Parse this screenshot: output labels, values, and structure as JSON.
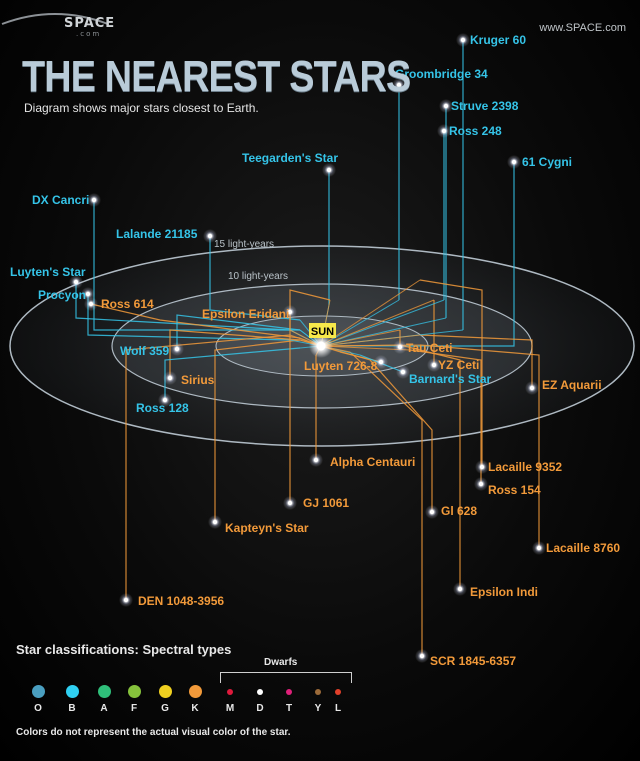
{
  "header": {
    "logo_text": "SPACE",
    "logo_sub": ".com",
    "site": "www.SPACE.com",
    "title": "THE NEAREST STARS",
    "subtitle": "Diagram shows major stars closest to Earth."
  },
  "rings": {
    "outer_label": "15 light-years",
    "inner_label": "10 light-years"
  },
  "sun": {
    "label": "SUN",
    "color": "#f7e84a"
  },
  "colors": {
    "blue": "#35c4e8",
    "orange": "#f29a3a",
    "ring": "#aeb9c2"
  },
  "stars": [
    {
      "name": "Kruger 60",
      "group": "blue"
    },
    {
      "name": "Groombridge 34",
      "group": "blue"
    },
    {
      "name": "Struve 2398",
      "group": "blue"
    },
    {
      "name": "Ross 248",
      "group": "blue"
    },
    {
      "name": "Teegarden's Star",
      "group": "blue"
    },
    {
      "name": "61 Cygni",
      "group": "blue"
    },
    {
      "name": "DX Cancri",
      "group": "blue"
    },
    {
      "name": "Lalande 21185",
      "group": "blue"
    },
    {
      "name": "Luyten's Star",
      "group": "blue"
    },
    {
      "name": "Procyon",
      "group": "blue"
    },
    {
      "name": "Ross 614",
      "group": "orange"
    },
    {
      "name": "Epsilon Eridani",
      "group": "orange"
    },
    {
      "name": "Wolf 359",
      "group": "blue"
    },
    {
      "name": "Sirius",
      "group": "orange"
    },
    {
      "name": "Ross 128",
      "group": "blue"
    },
    {
      "name": "Tau Ceti",
      "group": "orange"
    },
    {
      "name": "Luyten 726-8",
      "group": "orange"
    },
    {
      "name": "YZ Ceti",
      "group": "orange"
    },
    {
      "name": "Barnard's Star",
      "group": "blue"
    },
    {
      "name": "EZ Aquarii",
      "group": "orange"
    },
    {
      "name": "Alpha Centauri",
      "group": "orange"
    },
    {
      "name": "Lacaille 9352",
      "group": "orange"
    },
    {
      "name": "Ross 154",
      "group": "orange"
    },
    {
      "name": "GJ 1061",
      "group": "orange"
    },
    {
      "name": "Gl 628",
      "group": "orange"
    },
    {
      "name": "Kapteyn's Star",
      "group": "orange"
    },
    {
      "name": "Lacaille 8760",
      "group": "orange"
    },
    {
      "name": "DEN 1048-3956",
      "group": "orange"
    },
    {
      "name": "Epsilon Indi",
      "group": "orange"
    },
    {
      "name": "SCR 1845-6357",
      "group": "orange"
    }
  ],
  "legend": {
    "title": "Star classifications: Spectral types",
    "dwarfs_label": "Dwarfs",
    "note": "Colors do not represent the actual visual color of the star.",
    "types": [
      {
        "letter": "O",
        "color": "#4a9fc0"
      },
      {
        "letter": "B",
        "color": "#2fd0f2"
      },
      {
        "letter": "A",
        "color": "#2fbf7a"
      },
      {
        "letter": "F",
        "color": "#86c23c"
      },
      {
        "letter": "G",
        "color": "#f0d020"
      },
      {
        "letter": "K",
        "color": "#f29a3a"
      },
      {
        "letter": "M",
        "color": "#e01a3c"
      },
      {
        "letter": "D",
        "color": "#ffffff"
      },
      {
        "letter": "T",
        "color": "#e0207a"
      },
      {
        "letter": "Y",
        "color": "#9c6b3a"
      },
      {
        "letter": "L",
        "color": "#e2402a"
      }
    ]
  }
}
